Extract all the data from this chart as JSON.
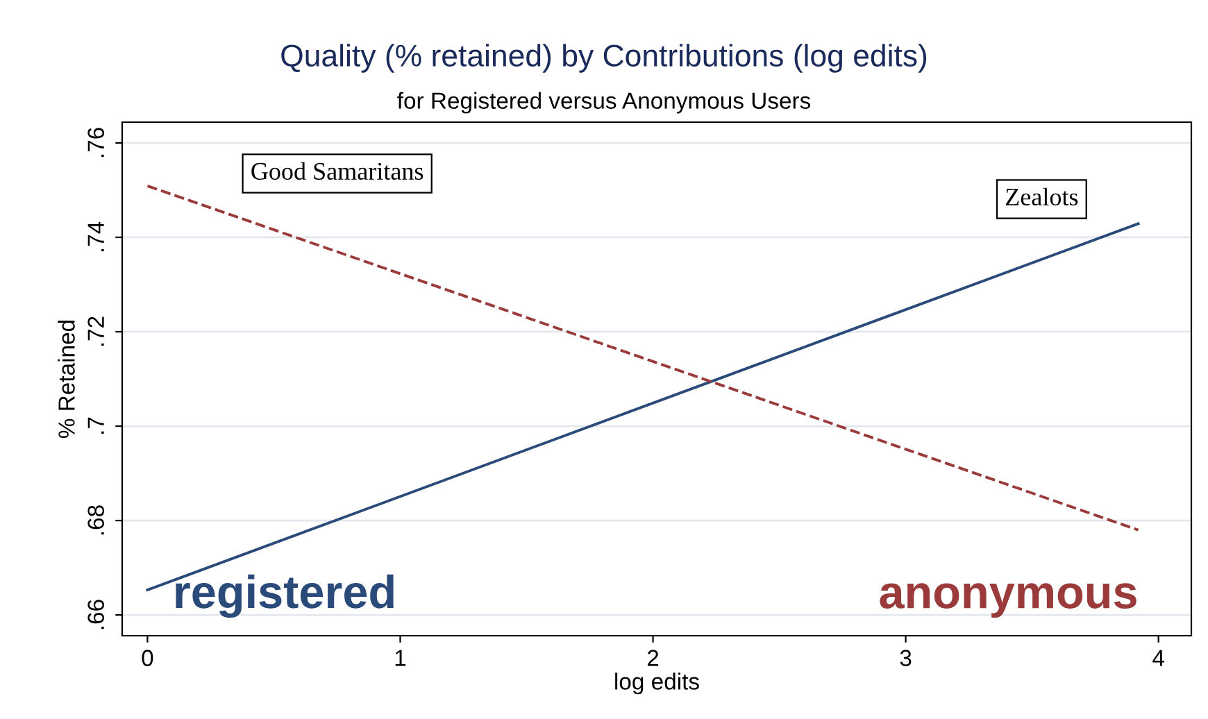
{
  "chart_data": {
    "type": "line",
    "title": "Quality (% retained) by Contributions (log edits)",
    "subtitle": "for Registered versus Anonymous Users",
    "xlabel": "log edits",
    "ylabel": "% Retained",
    "x": [
      0,
      3.92
    ],
    "series": [
      {
        "name": "registered",
        "color": "#2a4a7a",
        "values": [
          0.6653,
          0.7429
        ],
        "line_style": "solid"
      },
      {
        "name": "anonymous",
        "color": "#9b3a3a",
        "values": [
          0.7509,
          0.678
        ],
        "line_style": "dashed"
      }
    ],
    "annotations": [
      "Good Samaritans",
      "Zealots"
    ],
    "xlim": [
      -0.1,
      4.13
    ],
    "ylim": [
      0.6556,
      0.7644
    ],
    "xticks": [
      0,
      1,
      2,
      3,
      4
    ],
    "yticks": [
      {
        "value": 0.66,
        "label": ".66"
      },
      {
        "value": 0.68,
        "label": ".68"
      },
      {
        "value": 0.7,
        "label": ".7"
      },
      {
        "value": 0.72,
        "label": ".72"
      },
      {
        "value": 0.74,
        "label": ".74"
      },
      {
        "value": 0.76,
        "label": ".76"
      }
    ],
    "grid": "y",
    "marker": "none",
    "legend": false
  }
}
